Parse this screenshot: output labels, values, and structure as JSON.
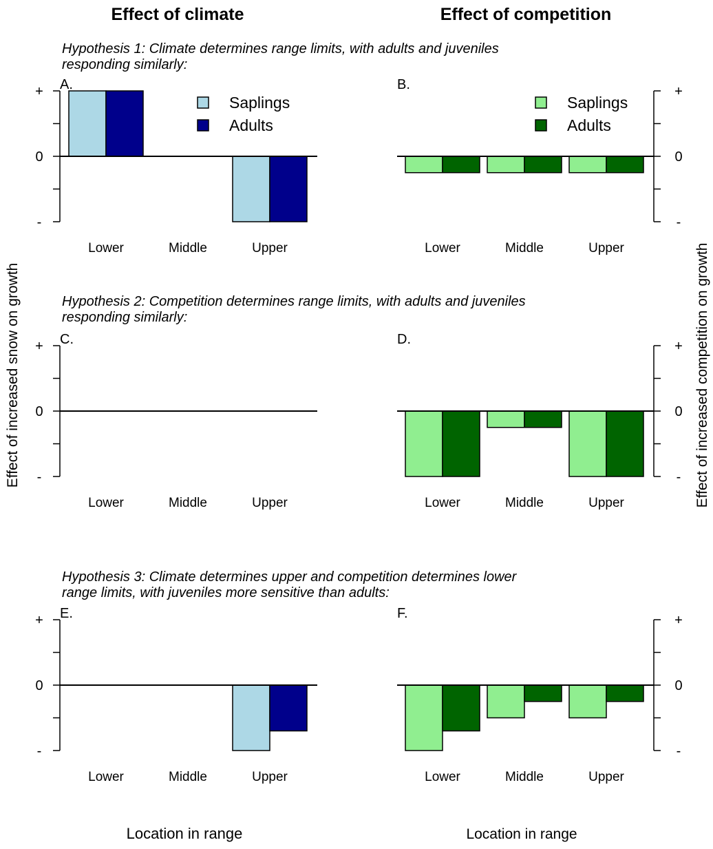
{
  "figure": {
    "column_titles": [
      "Effect of climate",
      "Effect of competition"
    ],
    "hypotheses": [
      [
        "Hypothesis 1: Climate determines range limits, with adults and juveniles",
        "responding similarly:"
      ],
      [
        "Hypothesis 2: Competition determines range limits, with adults and juveniles",
        "responding similarly:"
      ],
      [
        "Hypothesis 3: Climate determines upper and competition determines lower",
        "range limits, with juveniles more sensitive than adults:"
      ]
    ],
    "y_axis_left": "Effect of increased snow on growth",
    "y_axis_right": "Effect of increased competition on growth",
    "x_axis_left": "Location in range",
    "x_axis_right": "Location in range"
  },
  "colors": {
    "climate_saplings": "#add8e6",
    "climate_adults": "#00008b",
    "competition_saplings": "#90ee90",
    "competition_adults": "#006400"
  },
  "chart_data": [
    {
      "type": "bar",
      "panel": "A.",
      "column": "climate",
      "categories": [
        "Lower",
        "Middle",
        "Upper"
      ],
      "series": [
        {
          "name": "Saplings",
          "values": [
            1,
            0,
            -1
          ]
        },
        {
          "name": "Adults",
          "values": [
            1,
            0,
            -1
          ]
        }
      ],
      "ylim": [
        -1,
        1
      ],
      "yticks": [
        "-",
        "0",
        "+"
      ],
      "legend": "top-right"
    },
    {
      "type": "bar",
      "panel": "B.",
      "column": "competition",
      "categories": [
        "Lower",
        "Middle",
        "Upper"
      ],
      "series": [
        {
          "name": "Saplings",
          "values": [
            -0.25,
            -0.25,
            -0.25
          ]
        },
        {
          "name": "Adults",
          "values": [
            -0.25,
            -0.25,
            -0.25
          ]
        }
      ],
      "ylim": [
        -1,
        1
      ],
      "yticks": [
        "-",
        "0",
        "+"
      ],
      "legend": "top-right"
    },
    {
      "type": "bar",
      "panel": "C.",
      "column": "climate",
      "categories": [
        "Lower",
        "Middle",
        "Upper"
      ],
      "series": [
        {
          "values": [
            0,
            0,
            0
          ]
        },
        {
          "values": [
            0,
            0,
            0
          ]
        }
      ],
      "ylim": [
        -1,
        1
      ],
      "yticks": [
        "-",
        "0",
        "+"
      ]
    },
    {
      "type": "bar",
      "panel": "D.",
      "column": "competition",
      "categories": [
        "Lower",
        "Middle",
        "Upper"
      ],
      "series": [
        {
          "values": [
            -1,
            -0.25,
            -1
          ]
        },
        {
          "values": [
            -1,
            -0.25,
            -1
          ]
        }
      ],
      "ylim": [
        -1,
        1
      ],
      "yticks": [
        "-",
        "0",
        "+"
      ]
    },
    {
      "type": "bar",
      "panel": "E.",
      "column": "climate",
      "categories": [
        "Lower",
        "Middle",
        "Upper"
      ],
      "series": [
        {
          "values": [
            0,
            0,
            -1
          ]
        },
        {
          "values": [
            0,
            0,
            -0.7
          ]
        }
      ],
      "ylim": [
        -1,
        1
      ],
      "yticks": [
        "-",
        "0",
        "+"
      ]
    },
    {
      "type": "bar",
      "panel": "F.",
      "column": "competition",
      "categories": [
        "Lower",
        "Middle",
        "Upper"
      ],
      "series": [
        {
          "values": [
            -1,
            -0.5,
            -0.5
          ]
        },
        {
          "values": [
            -0.7,
            -0.25,
            -0.25
          ]
        }
      ],
      "ylim": [
        -1,
        1
      ],
      "yticks": [
        "-",
        "0",
        "+"
      ]
    }
  ]
}
